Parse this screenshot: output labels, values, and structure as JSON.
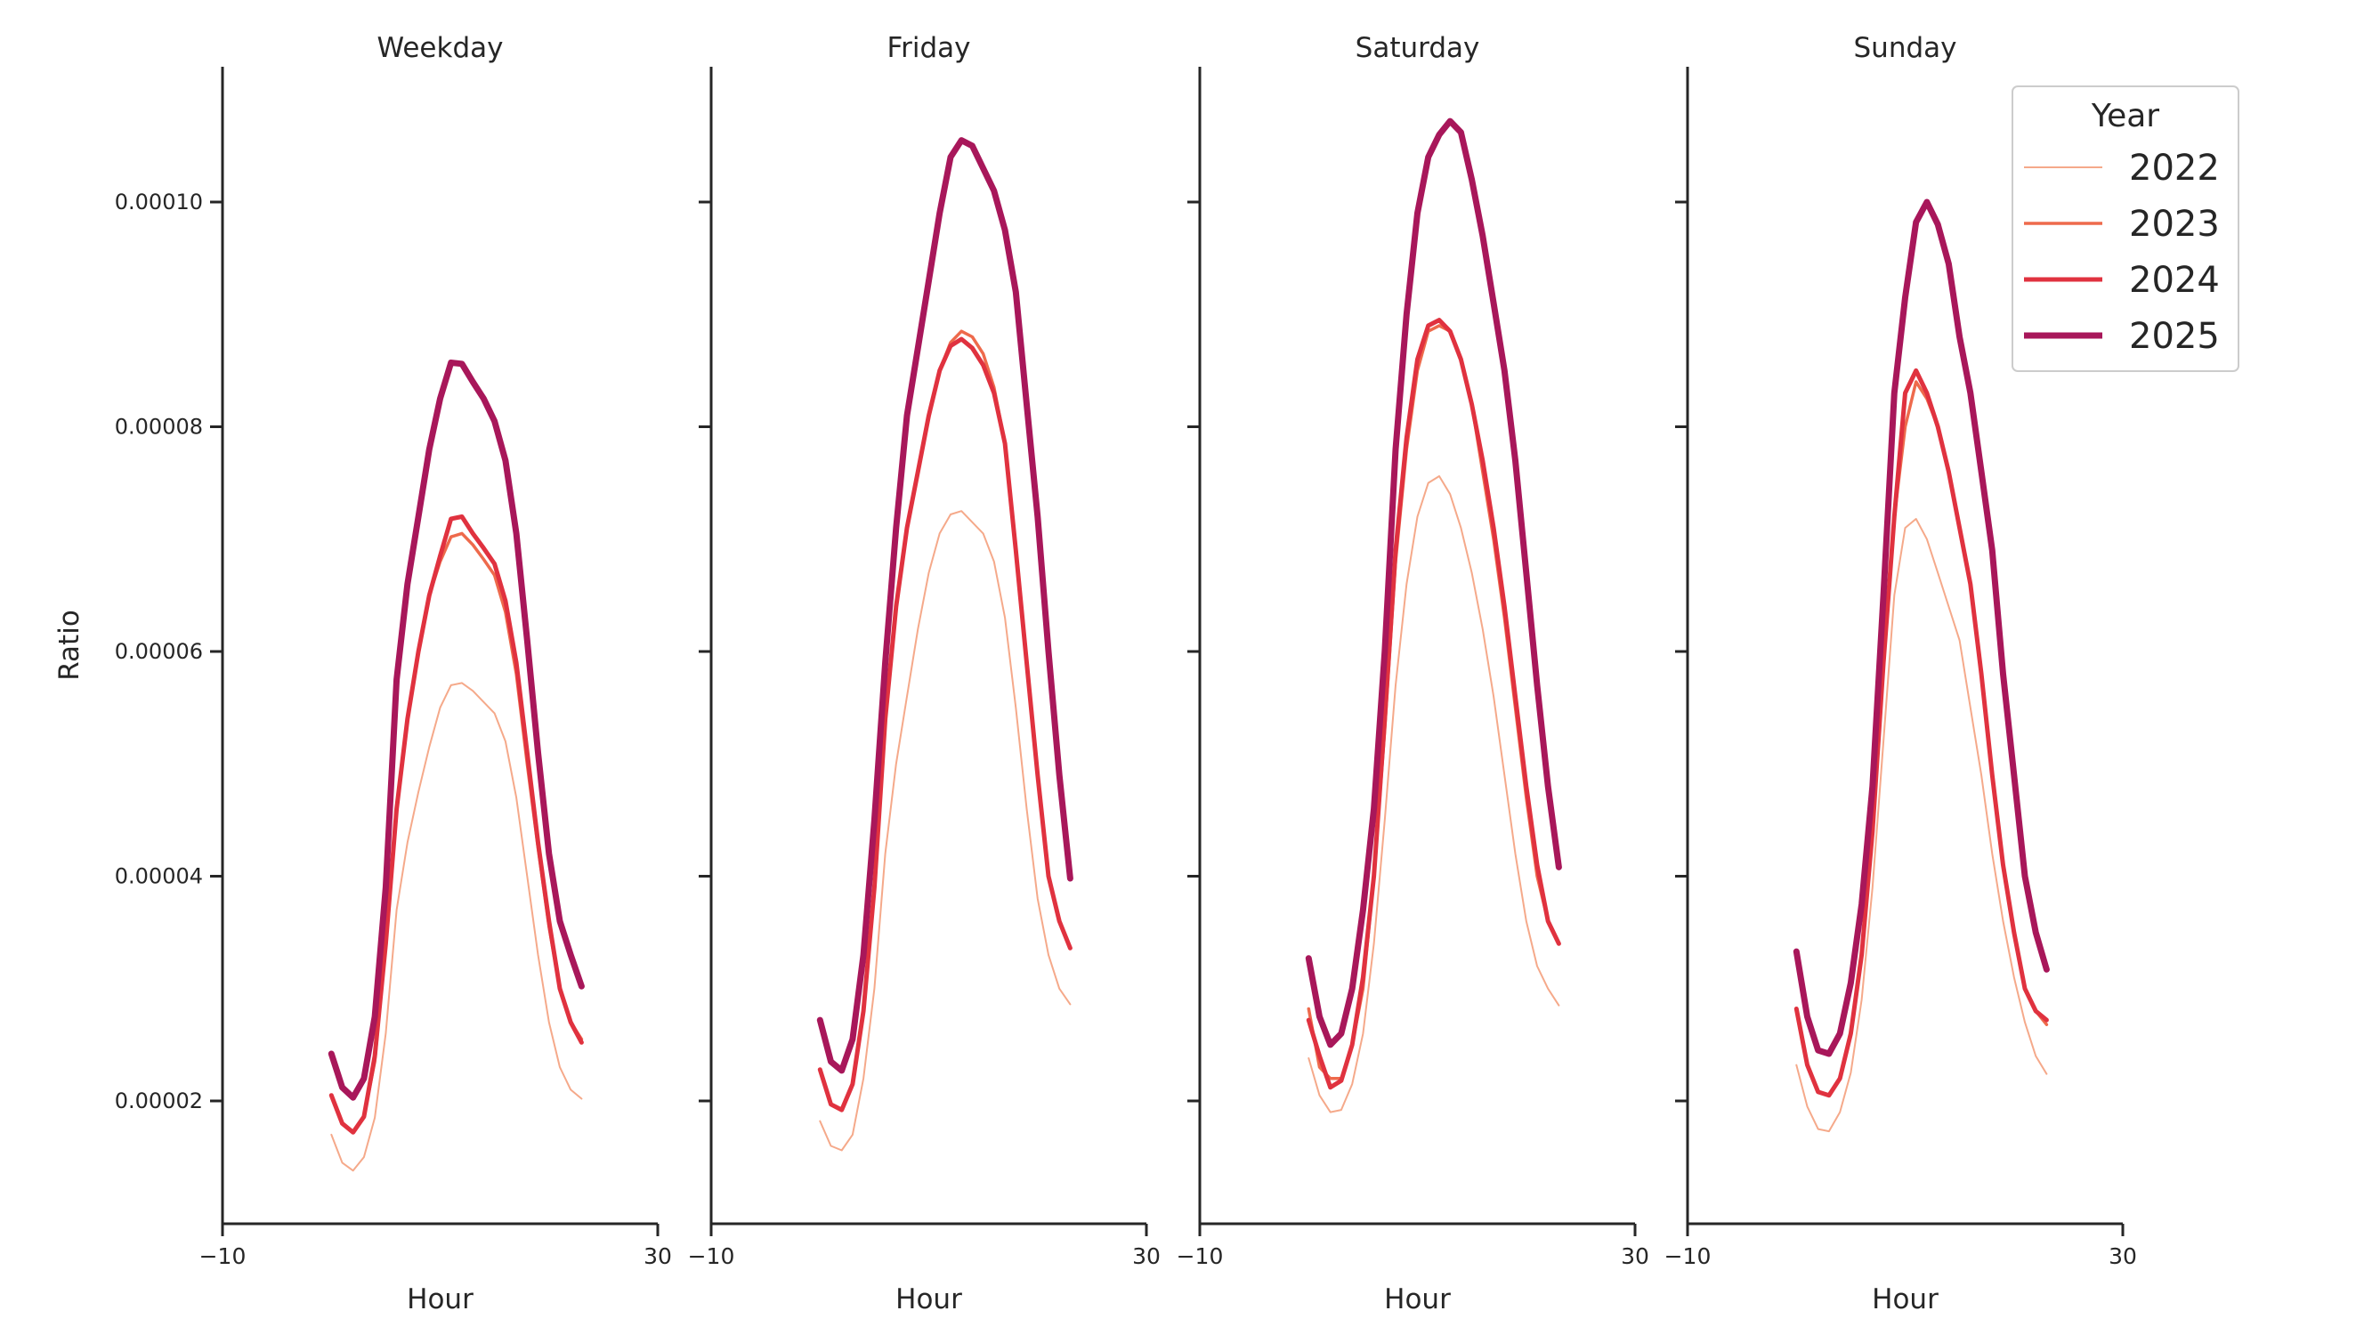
{
  "figure": {
    "ylabel": "Ratio",
    "legend": {
      "title": "Year",
      "placement": "top-right",
      "entries": [
        "2022",
        "2023",
        "2024",
        "2025"
      ]
    },
    "colors": {
      "2022": "#f5a98a",
      "2023": "#ee6a4c",
      "2024": "#e0323f",
      "2025": "#a8175a"
    }
  },
  "chart_data": [
    {
      "type": "line",
      "title": "Weekday",
      "xlabel": "Hour",
      "ylabel": "Ratio",
      "xlim": [
        -10,
        30
      ],
      "xticks": [
        "−10",
        "30"
      ],
      "ylim": [
        9.1e-06,
        0.000112
      ],
      "yticks": [
        "0.00002",
        "0.00004",
        "0.00006",
        "0.00008",
        "0.00010"
      ],
      "grid": false,
      "x": [
        0,
        1,
        2,
        3,
        4,
        5,
        6,
        7,
        8,
        9,
        10,
        11,
        12,
        13,
        14,
        15,
        16,
        17,
        18,
        19,
        20,
        21,
        22,
        23
      ],
      "series": [
        {
          "name": "2022",
          "values": [
            1.7,
            1.45,
            1.38,
            1.5,
            1.85,
            2.6,
            3.7,
            4.3,
            4.75,
            5.15,
            5.5,
            5.7,
            5.72,
            5.65,
            5.55,
            5.45,
            5.2,
            4.7,
            4.0,
            3.3,
            2.7,
            2.3,
            2.1,
            2.02
          ]
        },
        {
          "name": "2023",
          "values": [
            2.05,
            1.8,
            1.72,
            1.86,
            2.35,
            3.4,
            4.6,
            5.4,
            6.0,
            6.5,
            6.8,
            7.02,
            7.05,
            6.95,
            6.82,
            6.68,
            6.35,
            5.8,
            5.0,
            4.25,
            3.55,
            3.0,
            2.7,
            2.55
          ]
        },
        {
          "name": "2024",
          "values": [
            2.05,
            1.8,
            1.72,
            1.86,
            2.4,
            3.4,
            4.6,
            5.4,
            6.0,
            6.5,
            6.85,
            7.18,
            7.2,
            7.05,
            6.92,
            6.78,
            6.45,
            5.9,
            5.1,
            4.3,
            3.6,
            3.0,
            2.7,
            2.52
          ]
        },
        {
          "name": "2025",
          "values": [
            2.42,
            2.12,
            2.03,
            2.2,
            2.75,
            3.9,
            5.75,
            6.6,
            7.2,
            7.8,
            8.25,
            8.57,
            8.56,
            8.4,
            8.25,
            8.05,
            7.7,
            7.05,
            6.1,
            5.1,
            4.2,
            3.6,
            3.3,
            3.02
          ]
        }
      ]
    },
    {
      "type": "line",
      "title": "Friday",
      "xlabel": "Hour",
      "ylabel": "",
      "xlim": [
        -10,
        30
      ],
      "xticks": [
        "−10",
        "30"
      ],
      "ylim": [
        9.1e-06,
        0.000112
      ],
      "grid": false,
      "x": [
        0,
        1,
        2,
        3,
        4,
        5,
        6,
        7,
        8,
        9,
        10,
        11,
        12,
        13,
        14,
        15,
        16,
        17,
        18,
        19,
        20,
        21,
        22,
        23
      ],
      "series": [
        {
          "name": "2022",
          "values": [
            1.82,
            1.6,
            1.56,
            1.7,
            2.2,
            3.0,
            4.2,
            5.0,
            5.6,
            6.2,
            6.7,
            7.05,
            7.22,
            7.25,
            7.15,
            7.05,
            6.8,
            6.3,
            5.5,
            4.6,
            3.8,
            3.3,
            3.0,
            2.86
          ]
        },
        {
          "name": "2023",
          "values": [
            2.28,
            1.97,
            1.92,
            2.15,
            2.8,
            3.9,
            5.4,
            6.4,
            7.1,
            7.6,
            8.1,
            8.5,
            8.75,
            8.85,
            8.8,
            8.65,
            8.35,
            7.85,
            6.9,
            5.9,
            4.9,
            4.0,
            3.6,
            3.36
          ]
        },
        {
          "name": "2024",
          "values": [
            2.28,
            1.97,
            1.92,
            2.15,
            2.8,
            3.9,
            5.4,
            6.4,
            7.1,
            7.6,
            8.1,
            8.5,
            8.72,
            8.78,
            8.7,
            8.55,
            8.3,
            7.85,
            6.9,
            5.9,
            4.9,
            4.0,
            3.6,
            3.36
          ]
        },
        {
          "name": "2025",
          "values": [
            2.72,
            2.35,
            2.27,
            2.55,
            3.3,
            4.5,
            5.9,
            7.1,
            8.1,
            8.7,
            9.3,
            9.9,
            10.4,
            10.55,
            10.5,
            10.3,
            10.1,
            9.75,
            9.2,
            8.2,
            7.2,
            6.0,
            4.9,
            3.98
          ]
        }
      ]
    },
    {
      "type": "line",
      "title": "Saturday",
      "xlabel": "Hour",
      "ylabel": "",
      "xlim": [
        -10,
        30
      ],
      "xticks": [
        "−10",
        "30"
      ],
      "ylim": [
        9.1e-06,
        0.000112
      ],
      "grid": false,
      "x": [
        0,
        1,
        2,
        3,
        4,
        5,
        6,
        7,
        8,
        9,
        10,
        11,
        12,
        13,
        14,
        15,
        16,
        17,
        18,
        19,
        20,
        21,
        22,
        23
      ],
      "series": [
        {
          "name": "2022",
          "values": [
            2.38,
            2.05,
            1.9,
            1.92,
            2.15,
            2.6,
            3.4,
            4.5,
            5.7,
            6.6,
            7.2,
            7.5,
            7.56,
            7.4,
            7.1,
            6.7,
            6.2,
            5.6,
            4.9,
            4.2,
            3.6,
            3.2,
            3.0,
            2.85
          ]
        },
        {
          "name": "2023",
          "values": [
            2.82,
            2.3,
            2.2,
            2.2,
            2.5,
            3.0,
            4.0,
            5.3,
            6.8,
            7.8,
            8.5,
            8.85,
            8.9,
            8.85,
            8.6,
            8.2,
            7.6,
            7.0,
            6.3,
            5.5,
            4.7,
            4.0,
            3.6,
            3.4
          ]
        },
        {
          "name": "2024",
          "values": [
            2.72,
            2.4,
            2.12,
            2.18,
            2.5,
            3.1,
            4.0,
            5.4,
            6.9,
            7.9,
            8.6,
            8.9,
            8.95,
            8.85,
            8.6,
            8.2,
            7.7,
            7.1,
            6.4,
            5.6,
            4.8,
            4.1,
            3.6,
            3.4
          ]
        },
        {
          "name": "2025",
          "values": [
            3.27,
            2.75,
            2.5,
            2.6,
            3.0,
            3.7,
            4.6,
            6.0,
            7.8,
            9.0,
            9.9,
            10.4,
            10.6,
            10.72,
            10.62,
            10.2,
            9.7,
            9.1,
            8.5,
            7.7,
            6.7,
            5.7,
            4.8,
            4.08
          ]
        }
      ]
    },
    {
      "type": "line",
      "title": "Sunday",
      "xlabel": "Hour",
      "ylabel": "",
      "xlim": [
        -10,
        30
      ],
      "xticks": [
        "−10",
        "30"
      ],
      "ylim": [
        9.1e-06,
        0.000112
      ],
      "grid": false,
      "x": [
        0,
        1,
        2,
        3,
        4,
        5,
        6,
        7,
        8,
        9,
        10,
        11,
        12,
        13,
        14,
        15,
        16,
        17,
        18,
        19,
        20,
        21,
        22,
        23
      ],
      "series": [
        {
          "name": "2022",
          "values": [
            2.32,
            1.95,
            1.75,
            1.73,
            1.9,
            2.25,
            2.9,
            3.9,
            5.2,
            6.5,
            7.1,
            7.18,
            7.0,
            6.7,
            6.4,
            6.1,
            5.5,
            4.9,
            4.2,
            3.6,
            3.1,
            2.7,
            2.4,
            2.24
          ]
        },
        {
          "name": "2023",
          "values": [
            2.82,
            2.32,
            2.08,
            2.05,
            2.2,
            2.6,
            3.3,
            4.4,
            5.9,
            7.2,
            8.0,
            8.4,
            8.25,
            8.0,
            7.6,
            7.1,
            6.6,
            5.8,
            4.9,
            4.1,
            3.5,
            3.0,
            2.8,
            2.68
          ]
        },
        {
          "name": "2024",
          "values": [
            2.82,
            2.32,
            2.08,
            2.05,
            2.2,
            2.6,
            3.3,
            4.4,
            5.9,
            7.2,
            8.3,
            8.5,
            8.3,
            8.0,
            7.6,
            7.1,
            6.6,
            5.8,
            4.9,
            4.1,
            3.5,
            3.0,
            2.8,
            2.72
          ]
        },
        {
          "name": "2025",
          "values": [
            3.33,
            2.75,
            2.45,
            2.42,
            2.6,
            3.05,
            3.75,
            4.8,
            6.5,
            8.3,
            9.15,
            9.82,
            10.0,
            9.8,
            9.45,
            8.8,
            8.3,
            7.6,
            6.9,
            5.8,
            4.9,
            4.0,
            3.5,
            3.17
          ]
        }
      ]
    }
  ]
}
